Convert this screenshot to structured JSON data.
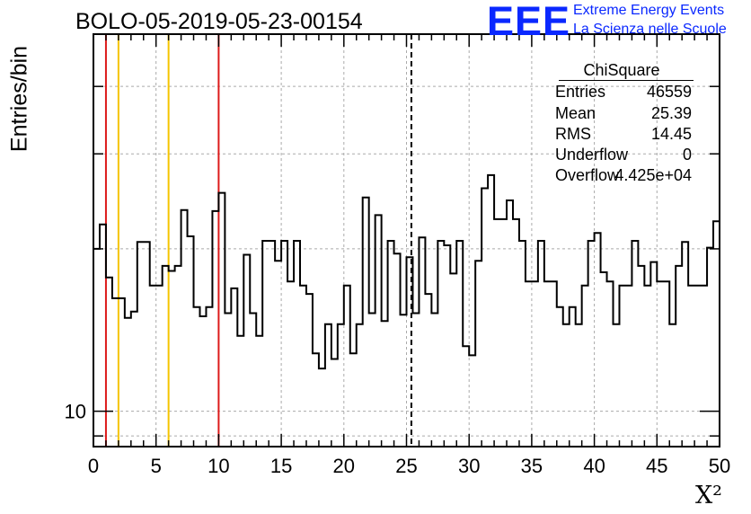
{
  "title": "BOLO-05-2019-05-23-00154",
  "logo": {
    "mark": "EEE",
    "line1": "Extreme Energy Events",
    "line2": "La Scienza nelle Scuole"
  },
  "stats": {
    "title": "ChiSquare",
    "rows": [
      {
        "key": "Entries",
        "value": "46559"
      },
      {
        "key": "Mean",
        "value": "25.39"
      },
      {
        "key": "RMS",
        "value": "14.45"
      },
      {
        "key": "Underflow",
        "value": "0"
      },
      {
        "key": "Overflow",
        "value": "4.425e+04"
      }
    ]
  },
  "colors": {
    "red_line": "#dd1a1a",
    "yellow_line": "#f5c400",
    "hist": "#000000",
    "grid": "#aaaaaa",
    "logo": "#0a28ff"
  },
  "chart_data": {
    "type": "histogram",
    "title": "BOLO-05-2019-05-23-00154",
    "xlabel": "X²",
    "ylabel": "Entries/bin",
    "xlim": [
      0,
      50
    ],
    "ylim": [
      8.6,
      50
    ],
    "yscale": "log",
    "grid": true,
    "xticks": [
      0,
      5,
      10,
      15,
      20,
      25,
      30,
      35,
      40,
      45,
      50
    ],
    "yticks": [
      10
    ],
    "bin_width": 0.5,
    "values": [
      20.0,
      22.2,
      17.7,
      16.2,
      16.2,
      14.9,
      15.3,
      20.6,
      20.6,
      17.1,
      17.1,
      18.6,
      18.2,
      18.6,
      23.6,
      21.1,
      15.6,
      15.0,
      15.6,
      23.5,
      25.4,
      15.2,
      16.9,
      13.8,
      19.5,
      15.2,
      13.8,
      20.7,
      20.7,
      19.0,
      20.7,
      17.4,
      20.7,
      17.1,
      16.5,
      12.8,
      12.0,
      14.5,
      12.5,
      14.5,
      17.1,
      12.8,
      14.5,
      24.9,
      15.2,
      23.1,
      14.7,
      20.7,
      19.6,
      15.1,
      19.3,
      15.2,
      21.0,
      16.5,
      15.2,
      20.7,
      20.3,
      18.0,
      20.7,
      13.2,
      12.7,
      19.0,
      25.9,
      27.4,
      22.7,
      22.7,
      24.6,
      22.7,
      20.7,
      17.4,
      17.4,
      20.7,
      17.4,
      17.4,
      15.6,
      14.5,
      15.6,
      14.5,
      17.1,
      20.7,
      21.4,
      18.1,
      17.4,
      14.5,
      17.1,
      17.1,
      20.7,
      18.6,
      17.1,
      18.9,
      17.4,
      17.4,
      14.5,
      18.6,
      20.6,
      17.1,
      17.1,
      17.1,
      20.1,
      22.5
    ],
    "reference_lines": [
      {
        "x": 1,
        "color": "red"
      },
      {
        "x": 10,
        "color": "red"
      },
      {
        "x": 2,
        "color": "yellow"
      },
      {
        "x": 6,
        "color": "yellow"
      },
      {
        "x": 25.39,
        "color": "black",
        "style": "dashed"
      }
    ]
  }
}
